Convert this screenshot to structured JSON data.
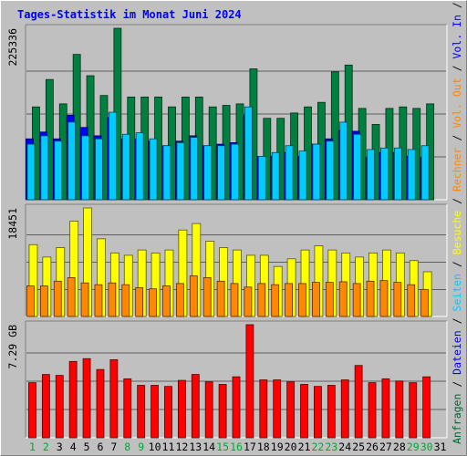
{
  "chart_data": {
    "type": "bar",
    "title": "Tages-Statistik im Monat Juni 2024",
    "categories": [
      "1",
      "2",
      "3",
      "4",
      "5",
      "6",
      "7",
      "8",
      "9",
      "10",
      "11",
      "12",
      "13",
      "14",
      "15",
      "16",
      "17",
      "18",
      "19",
      "20",
      "21",
      "22",
      "23",
      "24",
      "25",
      "26",
      "27",
      "28",
      "29",
      "30",
      "31"
    ],
    "weekend_days": [
      "1",
      "2",
      "8",
      "9",
      "15",
      "16",
      "22",
      "23",
      "29",
      "30"
    ],
    "right_axis_labels": [
      {
        "text": "Anfragen",
        "color": "#006633"
      },
      {
        "text": " / ",
        "color": "#000000"
      },
      {
        "text": "Dateien",
        "color": "#0000ff"
      },
      {
        "text": " / ",
        "color": "#000000"
      },
      {
        "text": "Seiten",
        "color": "#00ccff"
      },
      {
        "text": " / ",
        "color": "#000000"
      },
      {
        "text": "Besuche",
        "color": "#ffff00"
      },
      {
        "text": " / ",
        "color": "#000000"
      },
      {
        "text": "Rechner",
        "color": "#ff8800"
      },
      {
        "text": " / ",
        "color": "#000000"
      },
      {
        "text": "Vol. Out",
        "color": "#ff8800"
      },
      {
        "text": " / ",
        "color": "#000000"
      },
      {
        "text": "Vol. In",
        "color": "#0000ff"
      },
      {
        "text": " / ",
        "color": "#000000"
      },
      {
        "text": "Volumen",
        "color": "#ff0000"
      }
    ],
    "panels": [
      {
        "id": "hits",
        "max_label": "225336",
        "ymax": 225336,
        "series": [
          {
            "name": "Anfragen",
            "color": "#008040",
            "values": [
              122000,
              158000,
              126000,
              191000,
              163000,
              137000,
              225336,
              135000,
              135000,
              135000,
              122000,
              135000,
              135000,
              122000,
              124000,
              126000,
              172000,
              107000,
              107000,
              114000,
              122000,
              128000,
              168000,
              177000,
              120000,
              99000,
              120000,
              122000,
              120000,
              126000,
              0
            ]
          },
          {
            "name": "Dateien",
            "color": "#0000ff",
            "values": [
              80000,
              89000,
              80000,
              111000,
              95000,
              84000,
              108000,
              80000,
              80000,
              77000,
              71000,
              77000,
              84000,
              71000,
              73000,
              75000,
              111000,
              57000,
              57000,
              62000,
              57000,
              73000,
              80000,
              91000,
              90000,
              55000,
              62000,
              62000,
              57000,
              55000,
              0
            ]
          },
          {
            "name": "Seiten",
            "color": "#00ccff",
            "values": [
              73000,
              84000,
              77000,
              102000,
              84000,
              80000,
              115000,
              86000,
              88000,
              80000,
              71000,
              75000,
              82000,
              71000,
              71000,
              73000,
              122000,
              57000,
              62000,
              71000,
              64000,
              73000,
              77000,
              102000,
              86000,
              66000,
              68000,
              68000,
              66000,
              71000,
              0
            ]
          }
        ]
      },
      {
        "id": "visits",
        "max_label": "18451",
        "ymax": 18451,
        "series": [
          {
            "name": "Besuche",
            "color": "#ffff00",
            "values": [
              12200,
              10100,
              11700,
              16200,
              18451,
              13200,
              10800,
              10400,
              11300,
              10800,
              11300,
              14700,
              15800,
              12800,
              11700,
              11300,
              10400,
              10400,
              8500,
              9800,
              11300,
              12000,
              11300,
              10800,
              10100,
              10800,
              11300,
              10800,
              9500,
              7600,
              0
            ]
          },
          {
            "name": "Rechner",
            "color": "#ff8800",
            "values": [
              5200,
              5200,
              6000,
              6600,
              5700,
              5400,
              5700,
              5400,
              4900,
              4700,
              5200,
              5600,
              6900,
              6600,
              6000,
              5600,
              5000,
              5600,
              5400,
              5600,
              5600,
              5800,
              5800,
              5900,
              5600,
              6000,
              6100,
              5800,
              5400,
              4600,
              0
            ]
          }
        ]
      },
      {
        "id": "volume",
        "max_label": "7.29 GB",
        "ymax": 7.29,
        "series": [
          {
            "name": "Volumen",
            "color": "#ff0000",
            "values": [
              3.55,
              4.08,
              4.02,
              4.92,
              5.1,
              4.4,
              5.03,
              3.8,
              3.38,
              3.38,
              3.31,
              3.7,
              4.08,
              3.6,
              3.44,
              3.93,
              7.29,
              3.73,
              3.73,
              3.6,
              3.44,
              3.31,
              3.38,
              3.73,
              4.66,
              3.55,
              3.8,
              3.66,
              3.55,
              3.93,
              0
            ]
          }
        ]
      }
    ]
  }
}
